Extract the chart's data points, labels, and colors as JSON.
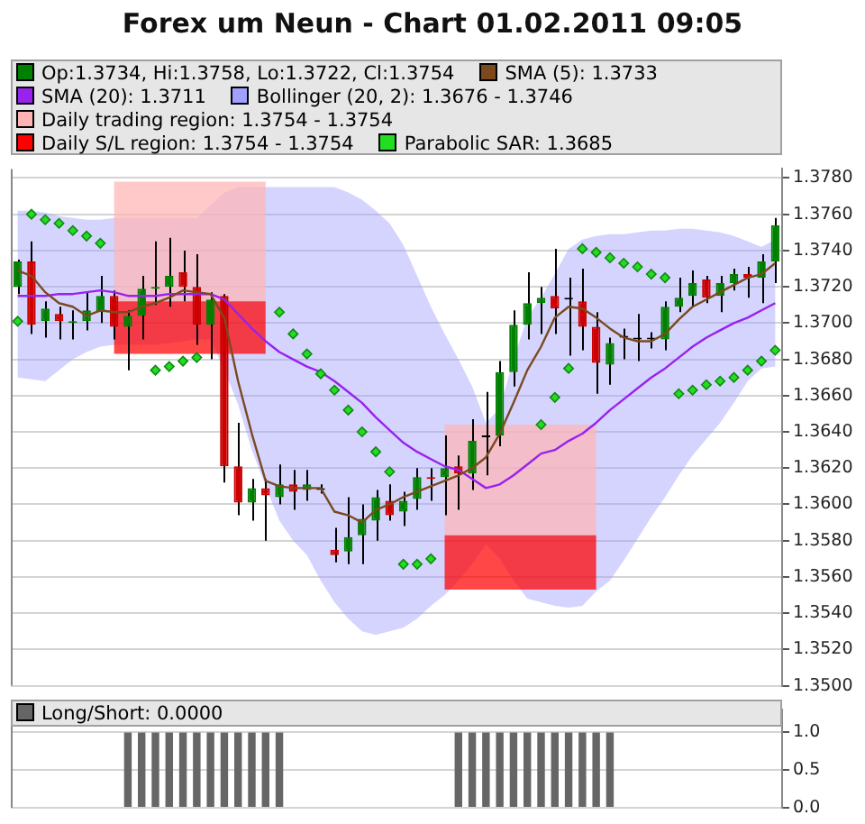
{
  "chart_data": [
    {
      "type": "candlestick",
      "title": "Forex um Neun - Chart 01.02.2011 09:05",
      "categories": [
        null,
        null,
        null,
        null,
        null,
        null,
        null,
        null,
        null,
        null,
        null,
        null,
        null,
        null,
        null,
        null,
        null,
        null,
        null,
        null,
        null,
        null,
        null,
        null,
        null,
        null,
        null,
        null,
        null,
        null,
        null,
        null,
        null,
        null,
        null,
        null,
        null,
        null,
        null,
        null,
        null,
        null,
        null,
        null,
        null,
        null,
        null,
        null,
        null,
        null,
        null,
        null,
        null,
        null,
        null,
        null
      ],
      "series": [
        {
          "name": "Op:1.3734, Hi:1.3758, Lo:1.3722, Cl:1.3754",
          "type": "candlestick",
          "color": "#008000",
          "colors": [
            "#008000",
            "#cc0000",
            "#008000",
            "#cc0000",
            "#008000",
            "#008000",
            "#008000",
            "#cc0000",
            "#008000",
            "#008000",
            "#008000",
            "#008000",
            "#cc0000",
            "#cc0000",
            "#008000",
            "#cc0000",
            "#cc0000",
            "#008000",
            "#cc0000",
            "#008000",
            "#cc0000",
            "#008000",
            "#000000",
            "#cc0000",
            "#008000",
            "#008000",
            "#008000",
            "#cc0000",
            "#008000",
            "#008000",
            "#cc0000",
            "#008000",
            "#cc0000",
            "#008000",
            "#000000",
            "#008000",
            "#008000",
            "#008000",
            "#008000",
            "#cc0000",
            "#000000",
            "#cc0000",
            "#cc0000",
            "#008000",
            "#000000",
            "#000000",
            "#000000",
            "#008000",
            "#008000",
            "#008000",
            "#cc0000",
            "#008000",
            "#008000",
            "#cc0000",
            "#008000",
            "#008000"
          ],
          "ohlc": [
            [
              1.372,
              1.3735,
              1.3716,
              1.3734
            ],
            [
              1.3734,
              1.3745,
              1.3694,
              1.3699
            ],
            [
              1.3701,
              1.3712,
              1.3692,
              1.3708
            ],
            [
              1.3705,
              1.3709,
              1.3691,
              1.3701
            ],
            [
              1.37,
              1.3707,
              1.3691,
              1.3701
            ],
            [
              1.3701,
              1.3717,
              1.3696,
              1.3707
            ],
            [
              1.3706,
              1.3726,
              1.37,
              1.3715
            ],
            [
              1.3715,
              1.3718,
              1.3691,
              1.3698
            ],
            [
              1.3698,
              1.3707,
              1.3674,
              1.3704
            ],
            [
              1.3704,
              1.3726,
              1.3691,
              1.3719
            ],
            [
              1.3719,
              1.3745,
              1.371,
              1.372
            ],
            [
              1.372,
              1.3747,
              1.3709,
              1.3726
            ],
            [
              1.3728,
              1.374,
              1.3712,
              1.372
            ],
            [
              1.372,
              1.3738,
              1.3688,
              1.3699
            ],
            [
              1.3699,
              1.3717,
              1.368,
              1.3713
            ],
            [
              1.3715,
              1.3716,
              1.3612,
              1.3621
            ],
            [
              1.3621,
              1.3645,
              1.3594,
              1.3601
            ],
            [
              1.3601,
              1.3614,
              1.3591,
              1.3609
            ],
            [
              1.3609,
              1.3614,
              1.358,
              1.3605
            ],
            [
              1.3604,
              1.3622,
              1.36,
              1.3611
            ],
            [
              1.3611,
              1.3619,
              1.3597,
              1.3607
            ],
            [
              1.3608,
              1.3619,
              1.3602,
              1.3611
            ],
            [
              1.3608,
              1.3611,
              1.3606,
              1.3608
            ],
            [
              1.3575,
              1.3587,
              1.3568,
              1.3572
            ],
            [
              1.3574,
              1.3604,
              1.3567,
              1.3582
            ],
            [
              1.3583,
              1.36,
              1.3567,
              1.3592
            ],
            [
              1.3591,
              1.3608,
              1.358,
              1.3604
            ],
            [
              1.3602,
              1.3611,
              1.3591,
              1.3594
            ],
            [
              1.3596,
              1.3607,
              1.3588,
              1.3602
            ],
            [
              1.3603,
              1.362,
              1.3597,
              1.3615
            ],
            [
              1.3615,
              1.362,
              1.3602,
              1.3614
            ],
            [
              1.3615,
              1.3638,
              1.3594,
              1.362
            ],
            [
              1.3621,
              1.3627,
              1.3597,
              1.3617
            ],
            [
              1.3617,
              1.3647,
              1.3608,
              1.3635
            ],
            [
              1.3637,
              1.3662,
              1.3616,
              1.3637
            ],
            [
              1.3638,
              1.3679,
              1.3632,
              1.3673
            ],
            [
              1.3673,
              1.3707,
              1.3665,
              1.3699
            ],
            [
              1.3699,
              1.3728,
              1.3691,
              1.3711
            ],
            [
              1.3711,
              1.372,
              1.3694,
              1.3714
            ],
            [
              1.3715,
              1.3741,
              1.3694,
              1.3708
            ],
            [
              1.3713,
              1.3725,
              1.3682,
              1.3713
            ],
            [
              1.3712,
              1.373,
              1.3685,
              1.3698
            ],
            [
              1.3698,
              1.3706,
              1.3661,
              1.3678
            ],
            [
              1.3677,
              1.3692,
              1.3666,
              1.3689
            ],
            [
              1.3692,
              1.3697,
              1.368,
              1.3692
            ],
            [
              1.3691,
              1.3705,
              1.3679,
              1.3691
            ],
            [
              1.3691,
              1.3695,
              1.3686,
              1.3691
            ],
            [
              1.3691,
              1.3712,
              1.3685,
              1.3709
            ],
            [
              1.3709,
              1.3725,
              1.3706,
              1.3714
            ],
            [
              1.3715,
              1.3729,
              1.3709,
              1.3722
            ],
            [
              1.3724,
              1.3726,
              1.3711,
              1.3714
            ],
            [
              1.3715,
              1.3726,
              1.3706,
              1.3722
            ],
            [
              1.3722,
              1.373,
              1.3718,
              1.3727
            ],
            [
              1.3727,
              1.3731,
              1.3714,
              1.3725
            ],
            [
              1.3725,
              1.3738,
              1.3711,
              1.3734
            ],
            [
              1.3734,
              1.3758,
              1.3722,
              1.3754
            ]
          ]
        },
        {
          "name": "SMA (5): 1.3733",
          "type": "line",
          "color": "#7a4a1e",
          "values": [
            1.3729,
            1.3726,
            1.3717,
            1.3711,
            1.3709,
            1.3704,
            1.3707,
            1.3706,
            1.3706,
            1.3709,
            1.3711,
            1.3714,
            1.3718,
            1.3717,
            1.3716,
            1.3703,
            1.3668,
            1.3639,
            1.3613,
            1.361,
            1.3609,
            1.3609,
            1.3609,
            1.3596,
            1.3594,
            1.359,
            1.3597,
            1.36,
            1.3604,
            1.3607,
            1.361,
            1.3613,
            1.3616,
            1.362,
            1.3626,
            1.3639,
            1.3656,
            1.3674,
            1.3687,
            1.3703,
            1.3709,
            1.3708,
            1.3703,
            1.3697,
            1.3692,
            1.369,
            1.369,
            1.3694,
            1.3702,
            1.3709,
            1.3713,
            1.3717,
            1.3721,
            1.3725,
            1.3727,
            1.3733
          ]
        },
        {
          "name": "SMA (20): 1.3711",
          "type": "line",
          "color": "#9922ee",
          "values": [
            1.3715,
            1.3715,
            1.3715,
            1.3716,
            1.3716,
            1.3717,
            1.3718,
            1.3717,
            1.3715,
            1.3715,
            1.3715,
            1.3716,
            1.3716,
            1.3716,
            1.3716,
            1.3713,
            1.3705,
            1.3697,
            1.369,
            1.3684,
            1.368,
            1.3676,
            1.3673,
            1.3668,
            1.3662,
            1.3656,
            1.3648,
            1.3641,
            1.3634,
            1.3629,
            1.3625,
            1.3621,
            1.3619,
            1.3614,
            1.3609,
            1.3611,
            1.3616,
            1.3622,
            1.3628,
            1.363,
            1.3635,
            1.3639,
            1.3645,
            1.3652,
            1.3658,
            1.3664,
            1.367,
            1.3675,
            1.3681,
            1.3687,
            1.3692,
            1.3696,
            1.37,
            1.3703,
            1.3707,
            1.3711
          ]
        },
        {
          "name": "Bollinger (20, 2): 1.3676 - 1.3746",
          "type": "area",
          "color": "#a0a0ff",
          "values": [
            null,
            null,
            null,
            null,
            null,
            null,
            null,
            null,
            null,
            null,
            null,
            null,
            null,
            null,
            null,
            null,
            null,
            null,
            null,
            null,
            null,
            null,
            null,
            null,
            null,
            null,
            null,
            null,
            null,
            null,
            null,
            null,
            null,
            null,
            null,
            null,
            null,
            null,
            null,
            null,
            null,
            null,
            null,
            null,
            null,
            null,
            null,
            null,
            null,
            null,
            null,
            null,
            null,
            null,
            null,
            null
          ],
          "lower": [
            1.367,
            1.3669,
            1.3668,
            1.3674,
            1.368,
            1.3684,
            1.3687,
            1.3688,
            1.3688,
            1.3688,
            1.3688,
            1.3689,
            1.369,
            1.3691,
            1.3691,
            1.3674,
            1.3655,
            1.363,
            1.361,
            1.3591,
            1.358,
            1.3572,
            1.3558,
            1.3546,
            1.3537,
            1.353,
            1.3528,
            1.353,
            1.3532,
            1.3537,
            1.3544,
            1.355,
            1.3558,
            1.3567,
            1.3578,
            1.357,
            1.3558,
            1.3548,
            1.3546,
            1.3544,
            1.3543,
            1.3544,
            1.3552,
            1.3558,
            1.3569,
            1.3581,
            1.3593,
            1.3604,
            1.3616,
            1.3627,
            1.3636,
            1.3645,
            1.3656,
            1.3668,
            1.3675,
            1.3676
          ],
          "upper": [
            1.3762,
            1.3762,
            1.3761,
            1.3759,
            1.3758,
            1.3757,
            1.3757,
            1.3758,
            1.3758,
            1.3758,
            1.3758,
            1.3758,
            1.3758,
            1.3758,
            1.3765,
            1.3772,
            1.3775,
            1.3775,
            1.3775,
            1.3775,
            1.3775,
            1.3775,
            1.3775,
            1.3775,
            1.3772,
            1.3768,
            1.3762,
            1.3755,
            1.3743,
            1.3726,
            1.3709,
            1.3694,
            1.368,
            1.3665,
            1.3645,
            1.3653,
            1.368,
            1.3703,
            1.3714,
            1.3727,
            1.3741,
            1.3746,
            1.3748,
            1.3749,
            1.3749,
            1.375,
            1.3751,
            1.3751,
            1.3752,
            1.3752,
            1.3751,
            1.375,
            1.3748,
            1.3745,
            1.3742,
            1.3746
          ]
        },
        {
          "name": "Daily trading region: 1.3754 - 1.3754",
          "type": "area",
          "color": "#ffb4b4",
          "values": [
            null,
            null,
            null,
            null,
            null,
            null,
            null,
            null,
            null,
            null,
            null,
            null,
            null,
            null,
            null,
            null,
            null,
            null,
            null,
            null,
            null,
            null,
            null,
            null,
            null,
            null,
            null,
            null,
            null,
            null,
            null,
            null,
            null,
            null,
            null,
            null,
            null,
            null,
            null,
            null,
            null,
            null,
            null,
            null,
            null,
            null,
            null,
            null,
            null,
            null,
            null,
            null,
            null,
            null,
            null,
            null
          ],
          "lower": [
            null,
            null,
            null,
            null,
            null,
            null,
            null,
            1.3712,
            1.3712,
            1.3712,
            1.3712,
            1.3712,
            1.3712,
            1.3712,
            1.3712,
            1.3712,
            1.3712,
            1.3712,
            1.3712,
            null,
            null,
            null,
            null,
            null,
            null,
            null,
            null,
            null,
            null,
            null,
            null,
            1.3583,
            1.3583,
            1.3583,
            1.3583,
            1.3583,
            1.3583,
            1.3583,
            1.3583,
            1.3583,
            1.3583,
            1.3583,
            1.3583,
            null,
            null,
            null,
            null,
            null,
            null,
            null,
            null,
            null,
            null,
            null,
            null,
            null
          ],
          "upper": [
            null,
            null,
            null,
            null,
            null,
            null,
            null,
            1.3778,
            1.3778,
            1.3778,
            1.3778,
            1.3778,
            1.3778,
            1.3778,
            1.3778,
            1.3778,
            1.3778,
            1.3778,
            1.3778,
            null,
            null,
            null,
            null,
            null,
            null,
            null,
            null,
            null,
            null,
            null,
            null,
            1.3644,
            1.3644,
            1.3644,
            1.3644,
            1.3644,
            1.3644,
            1.3644,
            1.3644,
            1.3644,
            1.3644,
            1.3644,
            1.3644,
            null,
            null,
            null,
            null,
            null,
            null,
            null,
            null,
            null,
            null,
            null,
            null,
            null
          ]
        },
        {
          "name": "Daily S/L region: 1.3754 - 1.3754",
          "type": "area",
          "color": "#ff0000",
          "values": [
            null,
            null,
            null,
            null,
            null,
            null,
            null,
            null,
            null,
            null,
            null,
            null,
            null,
            null,
            null,
            null,
            null,
            null,
            null,
            null,
            null,
            null,
            null,
            null,
            null,
            null,
            null,
            null,
            null,
            null,
            null,
            null,
            null,
            null,
            null,
            null,
            null,
            null,
            null,
            null,
            null,
            null,
            null,
            null,
            null,
            null,
            null,
            null,
            null,
            null,
            null,
            null,
            null,
            null,
            null,
            null
          ],
          "lower": [
            null,
            null,
            null,
            null,
            null,
            null,
            null,
            1.3683,
            1.3683,
            1.3683,
            1.3683,
            1.3683,
            1.3683,
            1.3683,
            1.3683,
            1.3683,
            1.3683,
            1.3683,
            1.3683,
            null,
            null,
            null,
            null,
            null,
            null,
            null,
            null,
            null,
            null,
            null,
            null,
            1.3553,
            1.3553,
            1.3553,
            1.3553,
            1.3553,
            1.3553,
            1.3553,
            1.3553,
            1.3553,
            1.3553,
            1.3553,
            1.3553,
            null,
            null,
            null,
            null,
            null,
            null,
            null,
            null,
            null,
            null,
            null,
            null,
            null
          ],
          "upper": [
            null,
            null,
            null,
            null,
            null,
            null,
            null,
            1.3712,
            1.3712,
            1.3712,
            1.3712,
            1.3712,
            1.3712,
            1.3712,
            1.3712,
            1.3712,
            1.3712,
            1.3712,
            1.3712,
            null,
            null,
            null,
            null,
            null,
            null,
            null,
            null,
            null,
            null,
            null,
            null,
            1.3583,
            1.3583,
            1.3583,
            1.3583,
            1.3583,
            1.3583,
            1.3583,
            1.3583,
            1.3583,
            1.3583,
            1.3583,
            1.3583,
            null,
            null,
            null,
            null,
            null,
            null,
            null,
            null,
            null,
            null,
            null,
            null,
            null
          ]
        },
        {
          "name": "Parabolic SAR: 1.3685",
          "type": "scatter",
          "color": "#22dd22",
          "marker": "diamond",
          "values": [
            1.3701,
            1.376,
            1.3757,
            1.3755,
            1.3751,
            1.3748,
            1.3744,
            null,
            null,
            null,
            1.3674,
            1.3676,
            1.3679,
            1.3681,
            null,
            null,
            null,
            null,
            null,
            1.3706,
            1.3694,
            1.3683,
            1.3672,
            1.3663,
            1.3652,
            1.364,
            1.3629,
            1.3618,
            1.3567,
            1.3567,
            1.357,
            null,
            null,
            null,
            null,
            null,
            null,
            null,
            1.3644,
            1.3659,
            1.3675,
            1.3741,
            1.3739,
            1.3736,
            1.3733,
            1.3731,
            1.3727,
            1.3725,
            1.3661,
            1.3663,
            1.3666,
            1.3668,
            1.367,
            1.3674,
            1.3679,
            1.3685
          ]
        }
      ],
      "ylim": [
        1.35,
        1.3785
      ],
      "yticks": [
        {
          "value": 1.35,
          "label": "1.3500"
        },
        {
          "value": 1.352,
          "label": "1.3520"
        },
        {
          "value": 1.354,
          "label": "1.3540"
        },
        {
          "value": 1.356,
          "label": "1.3560"
        },
        {
          "value": 1.358,
          "label": "1.3580"
        },
        {
          "value": 1.36,
          "label": "1.3600"
        },
        {
          "value": 1.362,
          "label": "1.3620"
        },
        {
          "value": 1.364,
          "label": "1.3640"
        },
        {
          "value": 1.366,
          "label": "1.3660"
        },
        {
          "value": 1.368,
          "label": "1.3680"
        },
        {
          "value": 1.37,
          "label": "1.3700"
        },
        {
          "value": 1.372,
          "label": "1.3720"
        },
        {
          "value": 1.374,
          "label": "1.3740"
        },
        {
          "value": 1.376,
          "label": "1.3760"
        },
        {
          "value": 1.378,
          "label": "1.3780"
        }
      ],
      "grid": "y",
      "legend": "top",
      "tick_labels": "y"
    },
    {
      "type": "bar",
      "categories": [
        null,
        null,
        null,
        null,
        null,
        null,
        null,
        null,
        null,
        null,
        null,
        null,
        null,
        null,
        null,
        null,
        null,
        null,
        null,
        null,
        null,
        null,
        null,
        null,
        null,
        null,
        null,
        null,
        null,
        null,
        null,
        null,
        null,
        null,
        null,
        null,
        null,
        null,
        null,
        null,
        null,
        null,
        null,
        null,
        null,
        null,
        null,
        null,
        null,
        null,
        null,
        null,
        null,
        null,
        null,
        null
      ],
      "series": [
        {
          "name": "Long/Short: 0.0000",
          "color": "#666666",
          "values": [
            0,
            0,
            0,
            0,
            0,
            0,
            0,
            0,
            1,
            1,
            1,
            1,
            1,
            1,
            1,
            1,
            1,
            1,
            1,
            1,
            0,
            0,
            0,
            0,
            0,
            0,
            0,
            0,
            0,
            0,
            0,
            0,
            1,
            1,
            1,
            1,
            1,
            1,
            1,
            1,
            1,
            1,
            1,
            1,
            0,
            0,
            0,
            0,
            0,
            0,
            0,
            0,
            0,
            0,
            0,
            0
          ]
        }
      ],
      "ylim": [
        0,
        1.3
      ],
      "yticks": [
        {
          "value": 0,
          "label": "0.0"
        },
        {
          "value": 0.5,
          "label": "0.5"
        },
        {
          "value": 1,
          "label": "1.0"
        }
      ],
      "grid": "y",
      "legend": "top",
      "tick_labels": "y"
    }
  ]
}
